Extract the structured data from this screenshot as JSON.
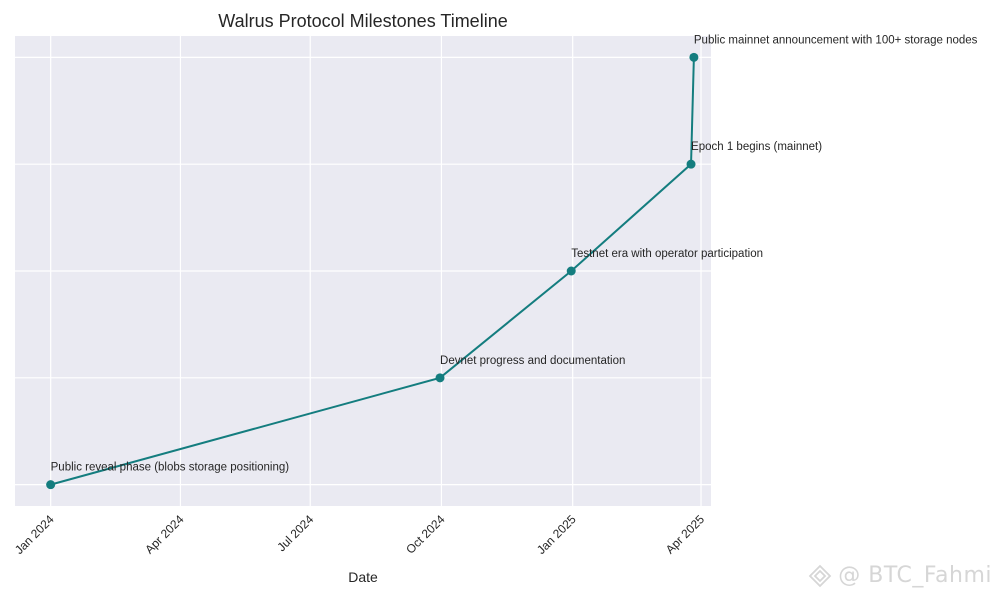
{
  "chart_data": {
    "type": "line",
    "title": "Walrus Protocol Milestones Timeline",
    "xlabel": "Date",
    "ylabel": "",
    "xlim": [
      "2023-12-07",
      "2025-04-08"
    ],
    "ylim": [
      0.8,
      5.2
    ],
    "grid": true,
    "x_ticks": [
      {
        "date": "2024-01-01",
        "label": "Jan 2024"
      },
      {
        "date": "2024-04-01",
        "label": "Apr 2024"
      },
      {
        "date": "2024-07-01",
        "label": "Jul 2024"
      },
      {
        "date": "2024-10-01",
        "label": "Oct 2024"
      },
      {
        "date": "2025-01-01",
        "label": "Jan 2025"
      },
      {
        "date": "2025-04-01",
        "label": "Apr 2025"
      }
    ],
    "y_ticks": [
      1,
      2,
      3,
      4,
      5
    ],
    "series": [
      {
        "color": "#147d7f",
        "points": [
          {
            "date": "2024-01-01",
            "y": 1,
            "label": "Public reveal phase (blobs storage positioning)"
          },
          {
            "date": "2024-09-30",
            "y": 2,
            "label": "Devnet progress and documentation"
          },
          {
            "date": "2024-12-31",
            "y": 3,
            "label": "Testnet era with operator participation"
          },
          {
            "date": "2025-03-25",
            "y": 4,
            "label": "Epoch 1 begins (mainnet)"
          },
          {
            "date": "2025-03-27",
            "y": 5,
            "label": "Public mainnet announcement with 100+ storage nodes"
          }
        ]
      }
    ]
  },
  "watermark": {
    "text": "@ BTC_Fahmi",
    "icon": "diamond-logo-icon"
  }
}
